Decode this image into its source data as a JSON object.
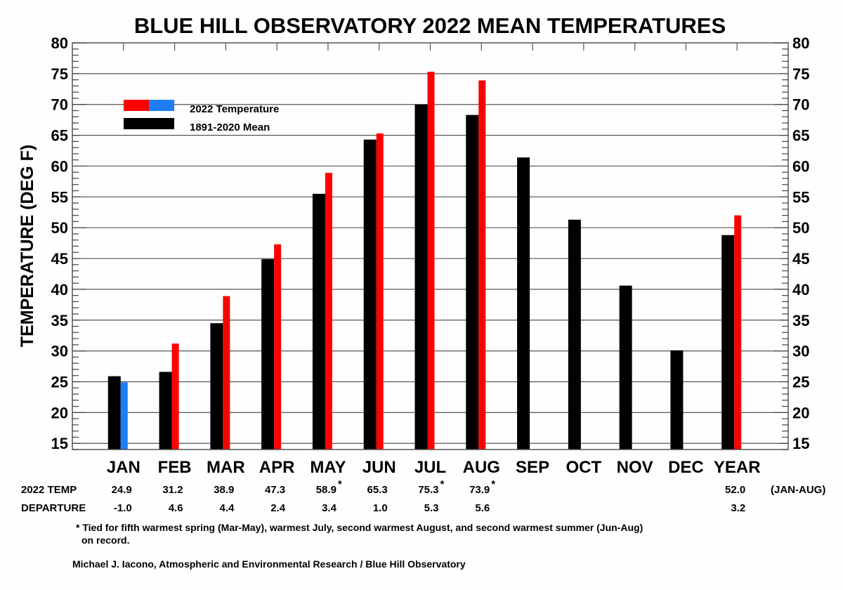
{
  "chart_data": {
    "type": "bar",
    "title": "BLUE HILL OBSERVATORY 2022 MEAN TEMPERATURES",
    "ylabel": "TEMPERATURE (DEG F)",
    "xlabel": "",
    "ylim": [
      14,
      80
    ],
    "yticks": [
      15,
      20,
      25,
      30,
      35,
      40,
      45,
      50,
      55,
      60,
      65,
      70,
      75,
      80
    ],
    "grid": true,
    "legend_position": "top-left",
    "categories": [
      "JAN",
      "FEB",
      "MAR",
      "APR",
      "MAY",
      "JUN",
      "JUL",
      "AUG",
      "SEP",
      "OCT",
      "NOV",
      "DEC",
      "YEAR"
    ],
    "series": [
      {
        "name": "1891-2020 Mean",
        "color": "#000000",
        "values": [
          25.9,
          26.6,
          34.5,
          44.9,
          55.5,
          64.3,
          70.0,
          68.3,
          61.4,
          51.3,
          40.6,
          30.1,
          48.8
        ]
      },
      {
        "name": "2022 Temperature",
        "color_above": "#ff0000",
        "color_below": "#1e7ef8",
        "values": [
          24.9,
          31.2,
          38.9,
          47.3,
          58.9,
          65.3,
          75.3,
          73.9,
          null,
          null,
          null,
          null,
          52.0
        ]
      }
    ],
    "legend": [
      {
        "label": "2022 Temperature",
        "colors": [
          "#ff0000",
          "#1e7ef8"
        ]
      },
      {
        "label": "1891-2020 Mean",
        "colors": [
          "#000000"
        ]
      }
    ]
  },
  "table": {
    "row_labels": {
      "temp": "2022 TEMP",
      "departure": "DEPARTURE"
    },
    "temp": [
      "24.9",
      "31.2",
      "38.9",
      "47.3",
      "58.9",
      "65.3",
      "75.3",
      "73.9",
      "",
      "",
      "",
      "",
      "52.0"
    ],
    "temp_star": [
      false,
      false,
      false,
      false,
      true,
      false,
      true,
      true,
      false,
      false,
      false,
      false,
      false
    ],
    "departure": [
      "-1.0",
      "4.6",
      "4.4",
      "2.4",
      "3.4",
      "1.0",
      "5.3",
      "5.6",
      "",
      "",
      "",
      "",
      "3.2"
    ],
    "year_note": "(JAN-AUG)",
    "star_symbol": "*"
  },
  "footnote": {
    "line1": "* Tied for fifth warmest spring (Mar-May), warmest July, second warmest August, and second warmest summer (Jun-Aug)",
    "line2": "on record."
  },
  "credit": "Michael J. Iacono, Atmospheric and Environmental Research / Blue Hill Observatory"
}
